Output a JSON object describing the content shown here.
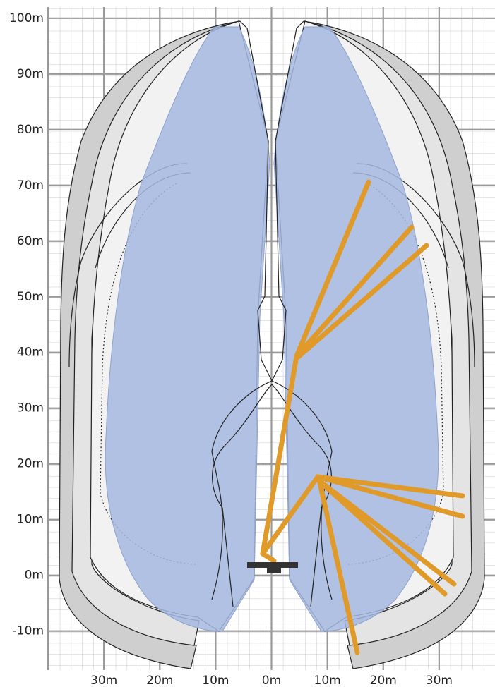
{
  "chart_data": {
    "type": "reach",
    "xlim": [
      -40,
      40
    ],
    "ylim": [
      -17,
      102
    ],
    "xticks": [
      {
        "value": -30,
        "label": "30m"
      },
      {
        "value": -20,
        "label": "20m"
      },
      {
        "value": -10,
        "label": "10m"
      },
      {
        "value": 0,
        "label": "0m"
      },
      {
        "value": 10,
        "label": "10m"
      },
      {
        "value": 20,
        "label": "20m"
      },
      {
        "value": 30,
        "label": "30m"
      }
    ],
    "yticks": [
      {
        "value": 100,
        "label": "100m"
      },
      {
        "value": 90,
        "label": "90m"
      },
      {
        "value": 80,
        "label": "80m"
      },
      {
        "value": 70,
        "label": "70m"
      },
      {
        "value": 60,
        "label": "60m"
      },
      {
        "value": 50,
        "label": "50m"
      },
      {
        "value": 40,
        "label": "40m"
      },
      {
        "value": 30,
        "label": "30m"
      },
      {
        "value": 20,
        "label": "20m"
      },
      {
        "value": 10,
        "label": "10m"
      },
      {
        "value": 0,
        "label": "0m"
      },
      {
        "value": -10,
        "label": "-10m"
      }
    ],
    "grid": true
  }
}
